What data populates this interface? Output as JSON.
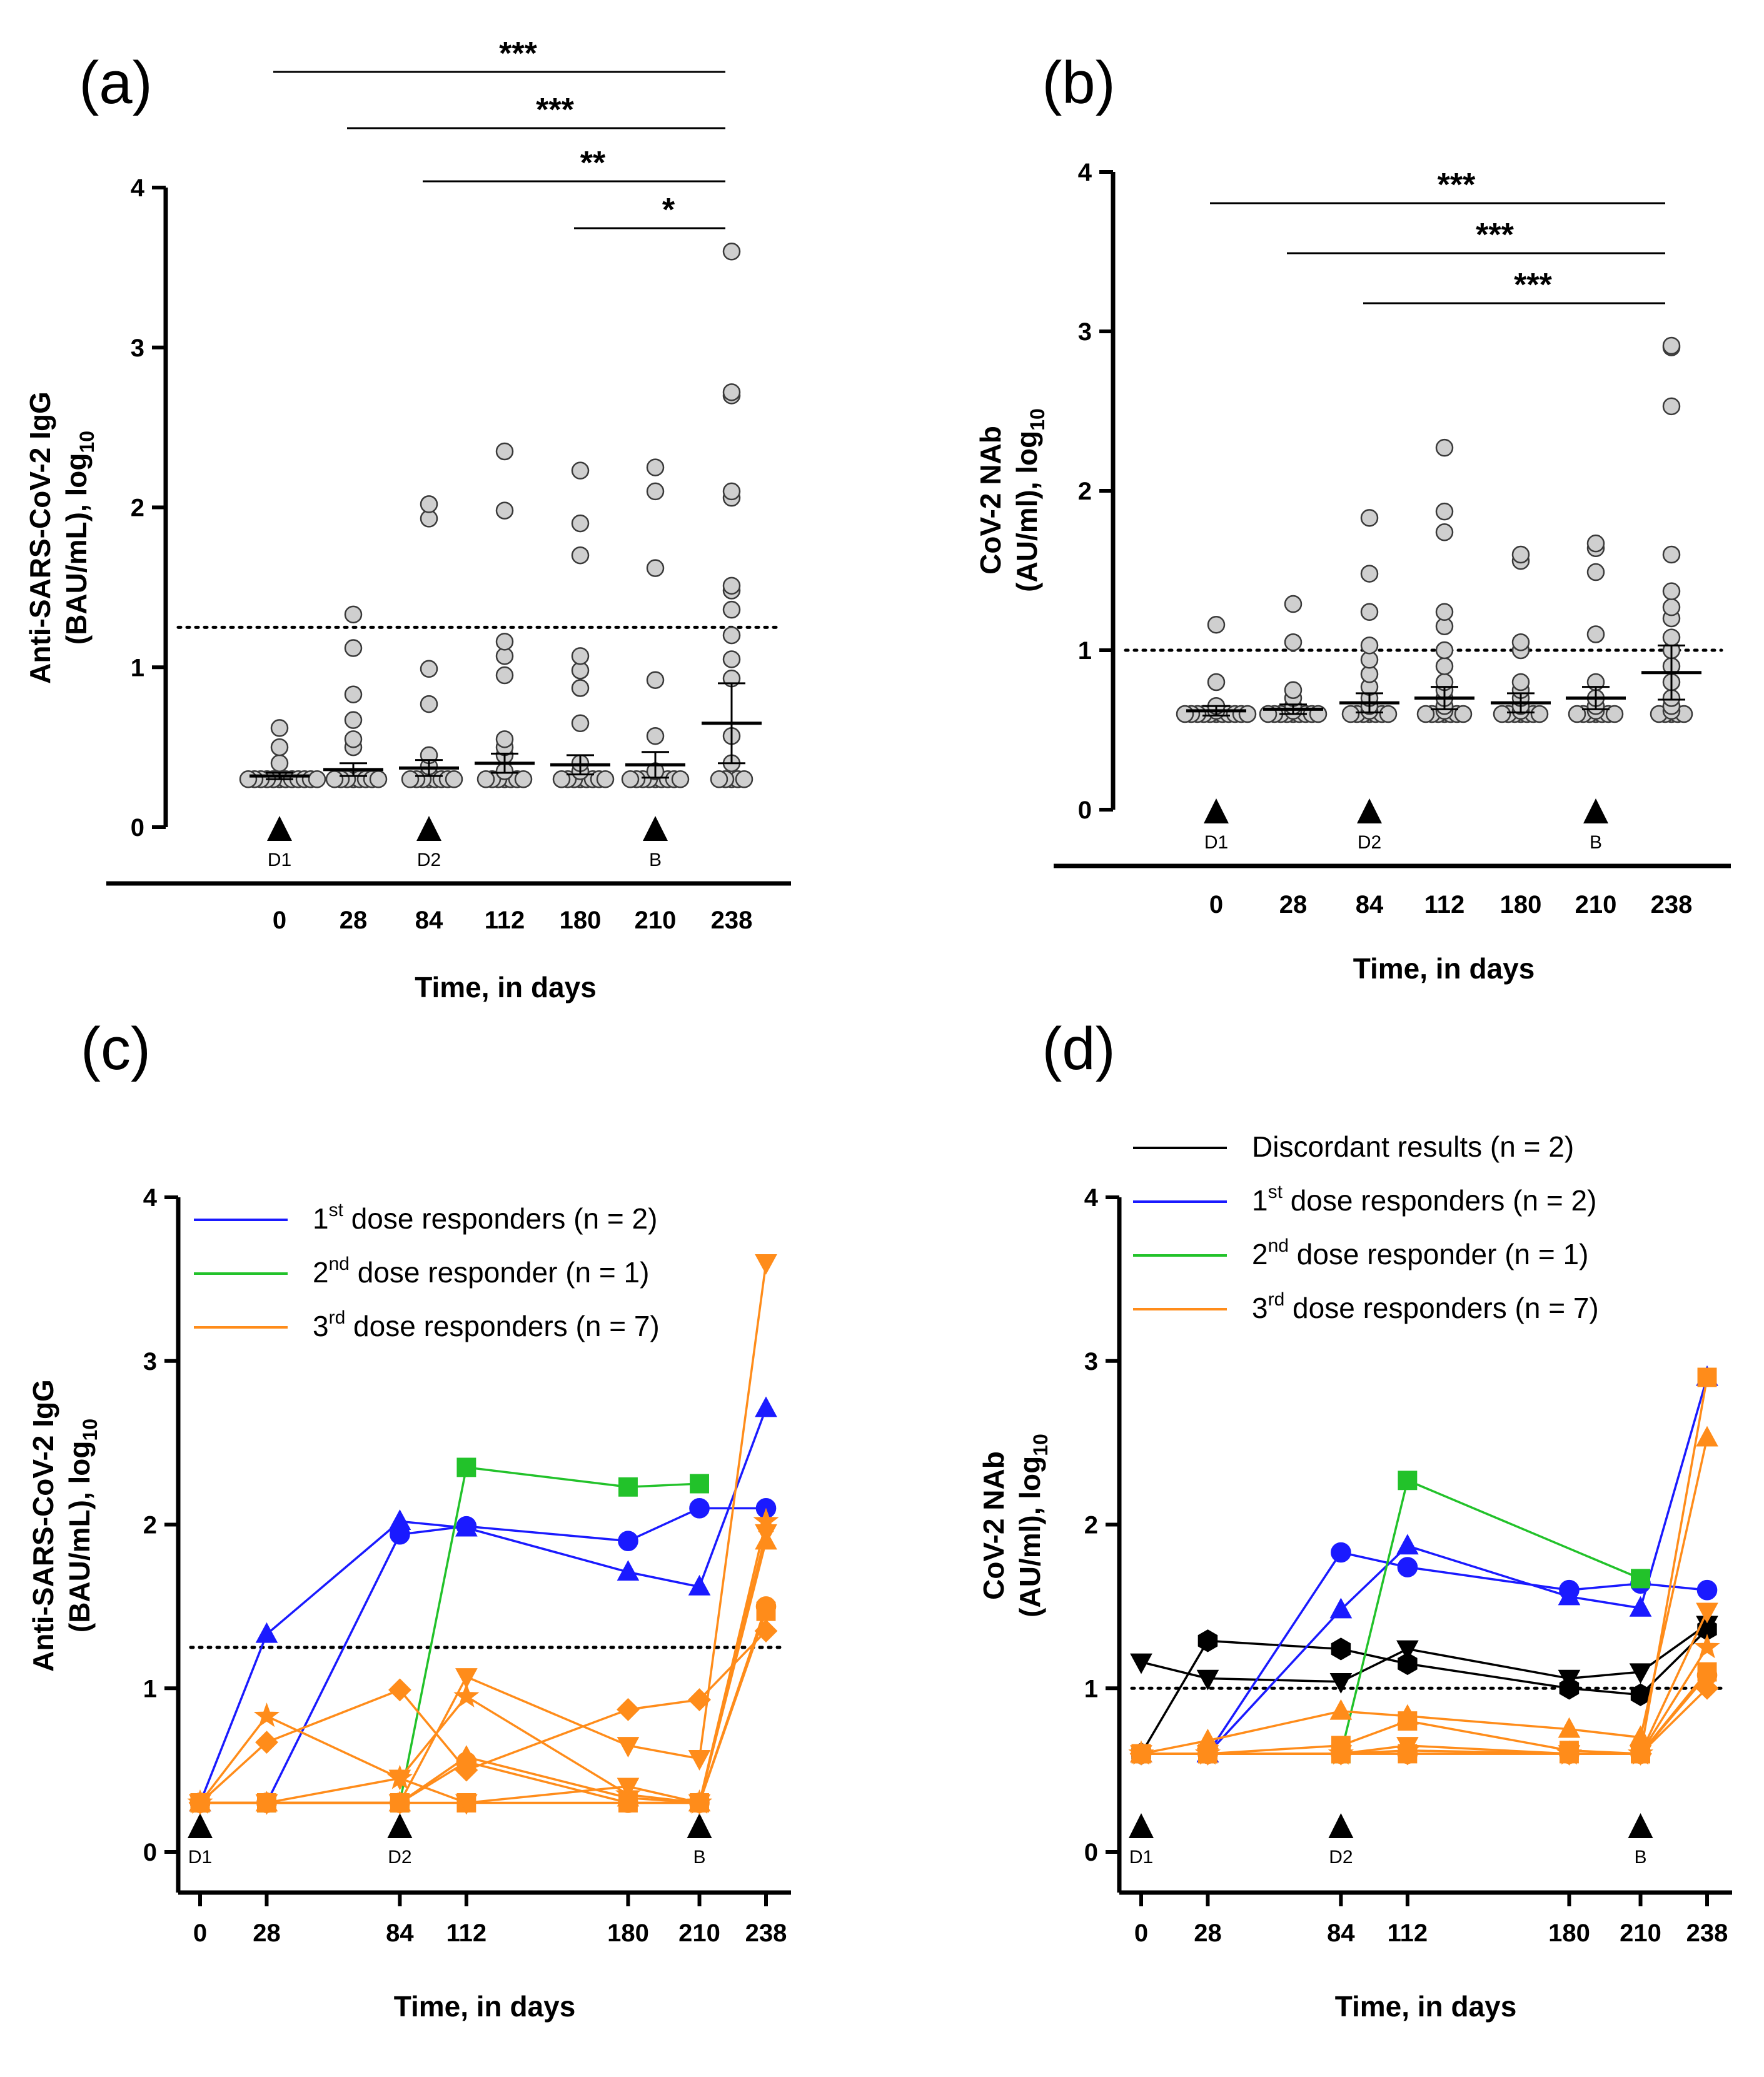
{
  "colors": {
    "blue": "#1a1aff",
    "green": "#22c22a",
    "orange": "#ff8c1a",
    "black": "#000000",
    "gray": "#cfcfcf"
  },
  "chart_data": [
    {
      "panel": "(a)",
      "type": "scatter",
      "xlabel": "Time, in days",
      "ylabel": "Anti-SARS-CoV-2 IgG (BAU/mL), log10",
      "ylabel_main": "Anti-SARS-CoV-2 IgG",
      "ylabel_sub": "(BAU/mL), log",
      "ylabel_subscript": "10",
      "ylim": [
        0,
        4
      ],
      "yticks": [
        "0",
        "1",
        "2",
        "3",
        "4"
      ],
      "categories": [
        "0",
        "28",
        "84",
        "112",
        "180",
        "210",
        "238"
      ],
      "events": [
        {
          "label": "D1",
          "category": "0"
        },
        {
          "label": "D2",
          "category": "84"
        },
        {
          "label": "B",
          "category": "210"
        }
      ],
      "threshold": 1.25,
      "series": [
        {
          "category": "0",
          "values": [
            0.3,
            0.3,
            0.3,
            0.3,
            0.3,
            0.3,
            0.3,
            0.3,
            0.3,
            0.3,
            0.3,
            0.3,
            0.4,
            0.5,
            0.62
          ],
          "mean": 0.32,
          "sem": 0.02
        },
        {
          "category": "28",
          "values": [
            0.3,
            0.3,
            0.3,
            0.3,
            0.3,
            0.3,
            0.3,
            0.3,
            0.5,
            0.55,
            0.67,
            0.83,
            1.12,
            1.33
          ],
          "mean": 0.36,
          "sem": 0.04
        },
        {
          "category": "84",
          "values": [
            0.3,
            0.3,
            0.3,
            0.3,
            0.3,
            0.3,
            0.3,
            0.3,
            0.38,
            0.45,
            0.77,
            0.99,
            1.93,
            2.02
          ],
          "mean": 0.37,
          "sem": 0.05
        },
        {
          "category": "112",
          "values": [
            0.3,
            0.3,
            0.3,
            0.3,
            0.3,
            0.3,
            0.3,
            0.35,
            0.45,
            0.5,
            0.55,
            0.95,
            1.07,
            1.16,
            1.98,
            2.35
          ],
          "mean": 0.4,
          "sem": 0.06
        },
        {
          "category": "180",
          "values": [
            0.3,
            0.3,
            0.3,
            0.3,
            0.3,
            0.3,
            0.3,
            0.3,
            0.35,
            0.4,
            0.65,
            0.87,
            0.98,
            1.07,
            1.7,
            1.9,
            2.23
          ],
          "mean": 0.39,
          "sem": 0.06
        },
        {
          "category": "210",
          "values": [
            0.3,
            0.3,
            0.3,
            0.3,
            0.3,
            0.3,
            0.3,
            0.3,
            0.3,
            0.35,
            0.57,
            0.92,
            1.62,
            2.1,
            2.25
          ],
          "mean": 0.39,
          "sem": 0.08
        },
        {
          "category": "238",
          "values": [
            0.3,
            0.3,
            0.3,
            0.3,
            0.3,
            0.4,
            0.57,
            0.93,
            1.05,
            1.2,
            1.36,
            1.48,
            1.51,
            2.06,
            2.1,
            2.7,
            2.72,
            3.6
          ],
          "mean": 0.65,
          "sem": 0.25
        }
      ],
      "significance": [
        {
          "from": "0",
          "to": "238",
          "label": "***"
        },
        {
          "from": "28",
          "to": "238",
          "label": "***"
        },
        {
          "from": "84",
          "to": "238",
          "label": "**"
        },
        {
          "from": "180",
          "to": "238",
          "label": "*"
        }
      ]
    },
    {
      "panel": "(b)",
      "type": "scatter",
      "xlabel": "Time, in days",
      "ylabel": "CoV-2 NAb (AU/ml), log10",
      "ylabel_main": "CoV-2 NAb",
      "ylabel_sub": "(AU/ml), log",
      "ylabel_subscript": "10",
      "ylim": [
        0,
        4
      ],
      "yticks": [
        "0",
        "1",
        "2",
        "3",
        "4"
      ],
      "categories": [
        "0",
        "28",
        "84",
        "112",
        "180",
        "210",
        "238"
      ],
      "events": [
        {
          "label": "D1",
          "category": "0"
        },
        {
          "label": "D2",
          "category": "84"
        },
        {
          "label": "B",
          "category": "210"
        }
      ],
      "threshold": 1.0,
      "series": [
        {
          "category": "0",
          "values": [
            0.6,
            0.6,
            0.6,
            0.6,
            0.6,
            0.6,
            0.6,
            0.6,
            0.6,
            0.6,
            0.6,
            0.62,
            0.65,
            0.8,
            1.16
          ],
          "mean": 0.62,
          "sem": 0.03
        },
        {
          "category": "28",
          "values": [
            0.6,
            0.6,
            0.6,
            0.6,
            0.6,
            0.6,
            0.6,
            0.6,
            0.6,
            0.62,
            0.65,
            0.7,
            0.75,
            1.05,
            1.29
          ],
          "mean": 0.63,
          "sem": 0.03
        },
        {
          "category": "84",
          "values": [
            0.6,
            0.6,
            0.6,
            0.6,
            0.6,
            0.6,
            0.6,
            0.62,
            0.65,
            0.7,
            0.77,
            0.85,
            0.94,
            1.03,
            1.24,
            1.48,
            1.83
          ],
          "mean": 0.67,
          "sem": 0.06
        },
        {
          "category": "112",
          "values": [
            0.6,
            0.6,
            0.6,
            0.6,
            0.6,
            0.6,
            0.6,
            0.62,
            0.65,
            0.7,
            0.75,
            0.8,
            0.9,
            1.0,
            1.15,
            1.24,
            1.74,
            1.87,
            2.27
          ],
          "mean": 0.7,
          "sem": 0.07
        },
        {
          "category": "180",
          "values": [
            0.6,
            0.6,
            0.6,
            0.6,
            0.6,
            0.6,
            0.6,
            0.62,
            0.65,
            0.7,
            0.75,
            0.8,
            1.0,
            1.05,
            1.56,
            1.6
          ],
          "mean": 0.67,
          "sem": 0.06
        },
        {
          "category": "210",
          "values": [
            0.6,
            0.6,
            0.6,
            0.6,
            0.6,
            0.6,
            0.6,
            0.62,
            0.65,
            0.7,
            0.8,
            1.1,
            1.49,
            1.64,
            1.67
          ],
          "mean": 0.7,
          "sem": 0.07
        },
        {
          "category": "238",
          "values": [
            0.6,
            0.6,
            0.6,
            0.6,
            0.6,
            0.62,
            0.65,
            0.7,
            0.8,
            0.9,
            1.0,
            1.08,
            1.2,
            1.27,
            1.37,
            1.6,
            2.53,
            2.9,
            2.91
          ],
          "mean": 0.86,
          "sem": 0.17
        }
      ],
      "significance": [
        {
          "from": "0",
          "to": "238",
          "label": "***"
        },
        {
          "from": "28",
          "to": "238",
          "label": "***"
        },
        {
          "from": "84",
          "to": "238",
          "label": "***"
        }
      ]
    },
    {
      "panel": "(c)",
      "type": "line",
      "xlabel": "Time, in days",
      "ylabel": "Anti-SARS-CoV-2 IgG (BAU/mL), log10",
      "ylabel_main": "Anti-SARS-CoV-2 IgG",
      "ylabel_sub": "(BAU/mL), log",
      "ylabel_subscript": "10",
      "ylim": [
        0,
        4
      ],
      "yticks": [
        "0",
        "1",
        "2",
        "3",
        "4"
      ],
      "x": [
        0,
        28,
        84,
        112,
        180,
        210,
        238
      ],
      "xticks": [
        "0",
        "28",
        "84",
        "112",
        "180",
        "210",
        "238"
      ],
      "events": [
        {
          "label": "D1",
          "x": 0
        },
        {
          "label": "D2",
          "x": 84
        },
        {
          "label": "B",
          "x": 210
        }
      ],
      "threshold": 1.25,
      "legend": [
        {
          "group": "blue",
          "ordinal": "1",
          "sup": "st",
          "rest": " dose responders (n = 2)"
        },
        {
          "group": "green",
          "ordinal": "2",
          "sup": "nd",
          "rest": " dose responder (n = 1)"
        },
        {
          "group": "orange",
          "ordinal": "3",
          "sup": "rd",
          "rest": " dose responders (n = 7)"
        }
      ],
      "series": [
        {
          "group": "blue",
          "marker": "triangle",
          "values": [
            0.3,
            1.33,
            2.02,
            1.98,
            1.71,
            1.62,
            2.71
          ]
        },
        {
          "group": "blue",
          "marker": "circle",
          "values": [
            0.3,
            0.3,
            1.94,
            1.99,
            1.9,
            2.1,
            2.1
          ]
        },
        {
          "group": "green",
          "marker": "square",
          "values": [
            0.3,
            0.3,
            0.3,
            2.35,
            2.23,
            2.25,
            null
          ]
        },
        {
          "group": "orange",
          "marker": "triangle-down",
          "values": [
            0.3,
            0.3,
            0.3,
            1.07,
            0.65,
            0.57,
            3.6
          ]
        },
        {
          "group": "orange",
          "marker": "diamond",
          "values": [
            0.3,
            0.67,
            0.99,
            0.5,
            0.87,
            0.93,
            1.35
          ]
        },
        {
          "group": "orange",
          "marker": "star",
          "values": [
            0.3,
            0.83,
            0.45,
            0.95,
            0.35,
            0.3,
            2.02
          ]
        },
        {
          "group": "orange",
          "marker": "triangle",
          "values": [
            0.3,
            0.3,
            0.3,
            0.58,
            0.33,
            0.3,
            1.9
          ]
        },
        {
          "group": "orange",
          "marker": "circle",
          "values": [
            0.3,
            0.3,
            0.3,
            0.55,
            0.3,
            0.3,
            1.5
          ]
        },
        {
          "group": "orange",
          "marker": "square",
          "values": [
            0.3,
            0.3,
            0.3,
            0.3,
            0.3,
            0.3,
            1.47
          ]
        },
        {
          "group": "orange",
          "marker": "triangle-down",
          "values": [
            0.3,
            0.3,
            0.45,
            0.3,
            0.4,
            0.3,
            1.95
          ]
        }
      ]
    },
    {
      "panel": "(d)",
      "type": "line",
      "xlabel": "Time, in days",
      "ylabel": "CoV-2 NAb (AU/ml), log10",
      "ylabel_main": "CoV-2 NAb",
      "ylabel_sub": "(AU/ml), log",
      "ylabel_subscript": "10",
      "ylim": [
        0,
        4
      ],
      "yticks": [
        "0",
        "1",
        "2",
        "3",
        "4"
      ],
      "x": [
        0,
        28,
        84,
        112,
        180,
        210,
        238
      ],
      "xticks": [
        "0",
        "28",
        "84",
        "112",
        "180",
        "210",
        "238"
      ],
      "events": [
        {
          "label": "D1",
          "x": 0
        },
        {
          "label": "D2",
          "x": 84
        },
        {
          "label": "B",
          "x": 210
        }
      ],
      "threshold": 1.0,
      "legend": [
        {
          "group": "black",
          "ordinal": "",
          "sup": "",
          "rest": "Discordant results (n = 2)"
        },
        {
          "group": "blue",
          "ordinal": "1",
          "sup": "st",
          "rest": " dose responders (n = 2)"
        },
        {
          "group": "green",
          "ordinal": "2",
          "sup": "nd",
          "rest": " dose responder (n = 1)"
        },
        {
          "group": "orange",
          "ordinal": "3",
          "sup": "rd",
          "rest": " dose responders (n = 7)"
        }
      ],
      "series": [
        {
          "group": "black",
          "marker": "triangle-down",
          "values": [
            1.16,
            1.06,
            1.04,
            1.24,
            1.06,
            1.1,
            1.39
          ]
        },
        {
          "group": "black",
          "marker": "hexagon",
          "values": [
            0.6,
            1.29,
            1.24,
            1.15,
            1.0,
            0.96,
            1.36
          ]
        },
        {
          "group": "blue",
          "marker": "triangle",
          "values": [
            0.6,
            0.6,
            1.48,
            1.87,
            1.56,
            1.49,
            2.9
          ]
        },
        {
          "group": "blue",
          "marker": "circle",
          "values": [
            0.6,
            0.6,
            1.83,
            1.74,
            1.6,
            1.64,
            1.6
          ]
        },
        {
          "group": "green",
          "marker": "square",
          "values": [
            0.6,
            0.6,
            0.6,
            2.27,
            null,
            1.67,
            null
          ]
        },
        {
          "group": "orange",
          "marker": "square",
          "values": [
            0.6,
            0.6,
            0.65,
            0.8,
            0.62,
            0.6,
            2.9
          ]
        },
        {
          "group": "orange",
          "marker": "triangle",
          "values": [
            0.6,
            0.68,
            0.86,
            0.83,
            0.75,
            0.7,
            2.53
          ]
        },
        {
          "group": "orange",
          "marker": "triangle-down",
          "values": [
            0.6,
            0.6,
            0.6,
            0.65,
            0.6,
            0.6,
            1.47
          ]
        },
        {
          "group": "orange",
          "marker": "star",
          "values": [
            0.6,
            0.6,
            0.6,
            0.62,
            0.6,
            0.6,
            1.25
          ]
        },
        {
          "group": "orange",
          "marker": "circle",
          "values": [
            0.6,
            0.6,
            0.6,
            0.6,
            0.6,
            0.6,
            1.08
          ]
        },
        {
          "group": "orange",
          "marker": "diamond",
          "values": [
            0.6,
            0.6,
            0.6,
            0.6,
            0.6,
            0.6,
            1.0
          ]
        },
        {
          "group": "orange",
          "marker": "square",
          "values": [
            0.6,
            0.6,
            0.6,
            0.6,
            0.6,
            0.6,
            1.1
          ]
        }
      ]
    }
  ]
}
